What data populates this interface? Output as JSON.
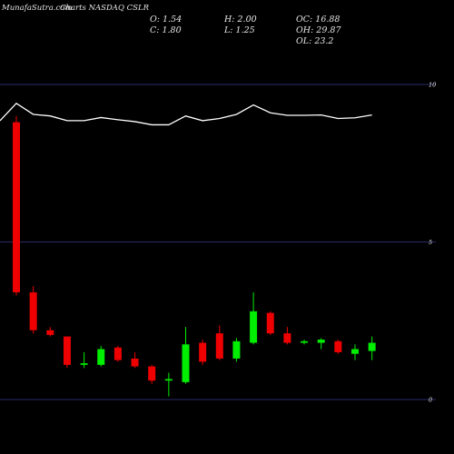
{
  "watermark": "MunafaSutra.com",
  "title": "Charts NASDAQ CSLR",
  "ohlc_text": {
    "o": "O: 1.54",
    "h": "H: 2.00",
    "oc": "OC: 16.88",
    "c": "C: 1.80",
    "l": "L: 1.25",
    "oh": "OH: 29.87",
    "ol": "OL: 23.2"
  },
  "colors": {
    "background": "#000000",
    "up": "#00ee00",
    "down": "#ee0000",
    "grid": "#2a2a6a",
    "line": "#ffffff",
    "text": "#e6e6e6"
  },
  "chart_data": {
    "type": "candlestick",
    "y_ticks": [
      0,
      5,
      10
    ],
    "ylim": [
      0,
      10
    ],
    "grid": true,
    "candles": [
      {
        "o": 8.8,
        "h": 9.0,
        "l": 3.3,
        "c": 3.4
      },
      {
        "o": 3.4,
        "h": 3.6,
        "l": 2.1,
        "c": 2.2
      },
      {
        "o": 2.2,
        "h": 2.3,
        "l": 2.0,
        "c": 2.05
      },
      {
        "o": 2.0,
        "h": 2.0,
        "l": 1.0,
        "c": 1.1
      },
      {
        "o": 1.1,
        "h": 1.5,
        "l": 1.0,
        "c": 1.15
      },
      {
        "o": 1.1,
        "h": 1.7,
        "l": 1.05,
        "c": 1.6
      },
      {
        "o": 1.65,
        "h": 1.7,
        "l": 1.2,
        "c": 1.25
      },
      {
        "o": 1.3,
        "h": 1.5,
        "l": 1.0,
        "c": 1.05
      },
      {
        "o": 1.05,
        "h": 1.1,
        "l": 0.5,
        "c": 0.6
      },
      {
        "o": 0.6,
        "h": 0.85,
        "l": 0.1,
        "c": 0.65
      },
      {
        "o": 0.55,
        "h": 2.3,
        "l": 0.5,
        "c": 1.75
      },
      {
        "o": 1.8,
        "h": 1.9,
        "l": 1.1,
        "c": 1.2
      },
      {
        "o": 2.1,
        "h": 2.35,
        "l": 1.25,
        "c": 1.3
      },
      {
        "o": 1.3,
        "h": 1.95,
        "l": 1.2,
        "c": 1.85
      },
      {
        "o": 1.8,
        "h": 3.4,
        "l": 1.75,
        "c": 2.8
      },
      {
        "o": 2.75,
        "h": 2.8,
        "l": 2.05,
        "c": 2.1
      },
      {
        "o": 2.1,
        "h": 2.3,
        "l": 1.75,
        "c": 1.8
      },
      {
        "o": 1.8,
        "h": 1.9,
        "l": 1.75,
        "c": 1.85
      },
      {
        "o": 1.8,
        "h": 1.95,
        "l": 1.6,
        "c": 1.9
      },
      {
        "o": 1.85,
        "h": 1.9,
        "l": 1.45,
        "c": 1.5
      },
      {
        "o": 1.45,
        "h": 1.75,
        "l": 1.25,
        "c": 1.6
      },
      {
        "o": 1.54,
        "h": 2.0,
        "l": 1.25,
        "c": 1.8
      }
    ],
    "line": [
      9.4,
      9.05,
      9.0,
      8.85,
      8.85,
      8.95,
      8.88,
      8.82,
      8.72,
      8.72,
      9.0,
      8.85,
      8.92,
      9.05,
      9.35,
      9.1,
      9.02,
      9.02,
      9.03,
      8.92,
      8.94,
      9.03
    ]
  }
}
